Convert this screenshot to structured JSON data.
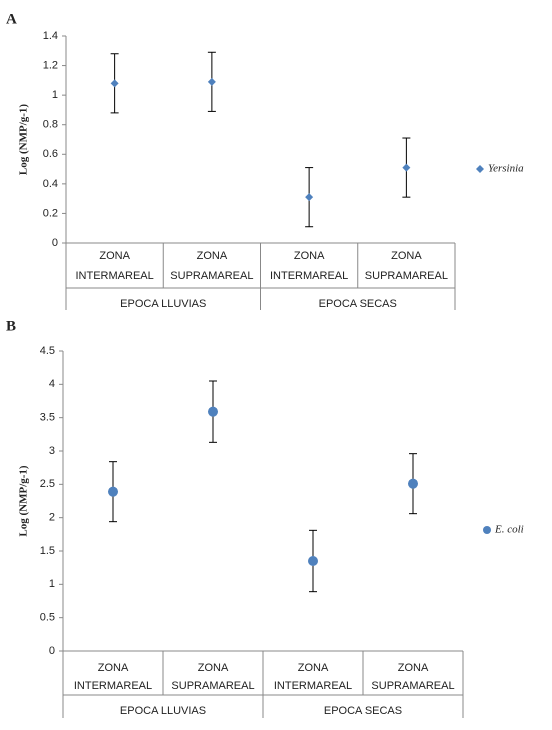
{
  "chart_data": [
    {
      "type": "scatter",
      "panel_label": "A",
      "y_label": "Log (NMP/g-1)",
      "categories": [
        "ZONA INTERMAREAL",
        "ZONA SUPRAMAREAL",
        "ZONA INTERMAREAL",
        "ZONA SUPRAMAREAL"
      ],
      "groups": [
        "EPOCA LLUVIAS",
        "EPOCA SECAS"
      ],
      "series": [
        {
          "name": "Yersinia",
          "color": "#4f81bd",
          "marker": "diamond",
          "values": [
            1.08,
            1.09,
            0.31,
            0.51
          ],
          "errors": [
            0.2,
            0.2,
            0.2,
            0.2
          ]
        }
      ],
      "ylim": [
        0,
        1.4
      ],
      "yticks": [
        0,
        0.2,
        0.4,
        0.6,
        0.8,
        1,
        1.2,
        1.4
      ],
      "legend": "right"
    },
    {
      "type": "scatter",
      "panel_label": "B",
      "y_label": "Log (NMP/g-1)",
      "categories": [
        "ZONA INTERMAREAL",
        "ZONA SUPRAMAREAL",
        "ZONA INTERMAREAL",
        "ZONA SUPRAMAREAL"
      ],
      "groups": [
        "EPOCA LLUVIAS",
        "EPOCA SECAS"
      ],
      "series": [
        {
          "name": "E. coli",
          "color": "#4f81bd",
          "marker": "circle",
          "values": [
            2.39,
            3.59,
            1.35,
            2.51
          ],
          "errors": [
            0.45,
            0.46,
            0.46,
            0.45
          ]
        }
      ],
      "ylim": [
        0,
        4.5
      ],
      "yticks": [
        0,
        0.5,
        1,
        1.5,
        2,
        2.5,
        3,
        3.5,
        4,
        4.5
      ],
      "legend": "right"
    }
  ]
}
